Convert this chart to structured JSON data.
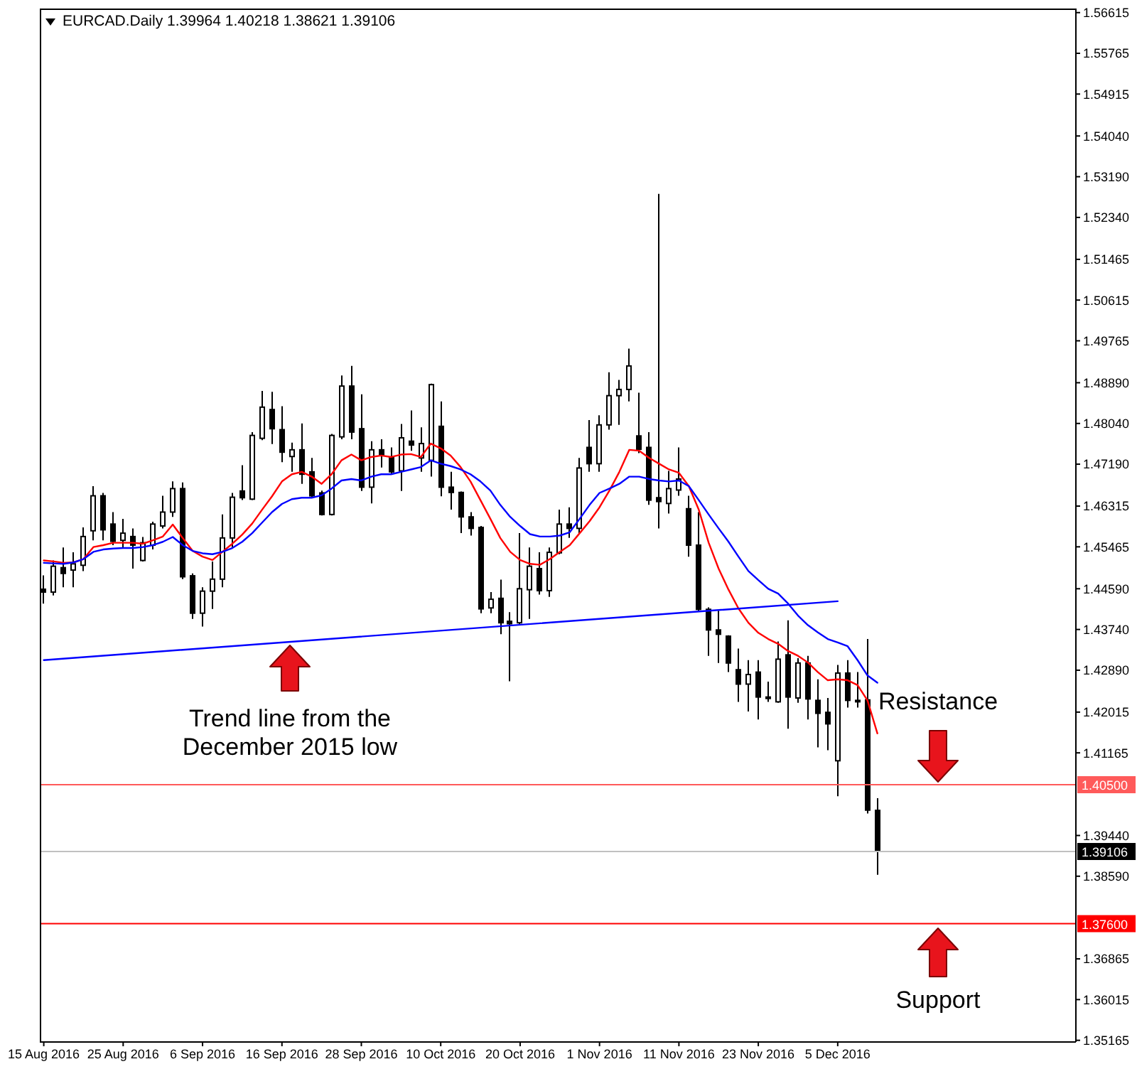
{
  "chart_data": {
    "type": "candlestick",
    "title": "EURCAD.Daily 1.39964 1.40218 1.38621 1.39106",
    "categories": [
      "15 Aug 2016",
      null,
      null,
      null,
      null,
      null,
      null,
      null,
      "25 Aug 2016",
      null,
      null,
      null,
      null,
      null,
      null,
      null,
      "6 Sep 2016",
      null,
      null,
      null,
      null,
      null,
      null,
      null,
      "16 Sep 2016",
      null,
      null,
      null,
      null,
      null,
      null,
      null,
      "28 Sep 2016",
      null,
      null,
      null,
      null,
      null,
      null,
      null,
      "10 Oct 2016",
      null,
      null,
      null,
      null,
      null,
      null,
      null,
      "20 Oct 2016",
      null,
      null,
      null,
      null,
      null,
      null,
      null,
      "1 Nov 2016",
      null,
      null,
      null,
      null,
      null,
      null,
      null,
      "11 Nov 2016",
      null,
      null,
      null,
      null,
      null,
      null,
      null,
      "23 Nov 2016",
      null,
      null,
      null,
      null,
      null,
      null,
      null,
      "5 Dec 2016",
      null,
      null,
      null,
      null
    ],
    "ohlc": [
      [
        1.4458,
        1.4487,
        1.4428,
        1.4452
      ],
      [
        1.4452,
        1.4518,
        1.4445,
        1.4506
      ],
      [
        1.4503,
        1.4545,
        1.4462,
        1.4491
      ],
      [
        1.4498,
        1.4535,
        1.4462,
        1.4511
      ],
      [
        1.4508,
        1.4587,
        1.4496,
        1.4568
      ],
      [
        1.458,
        1.4673,
        1.456,
        1.4653
      ],
      [
        1.4653,
        1.4659,
        1.456,
        1.4582
      ],
      [
        1.4594,
        1.4619,
        1.455,
        1.4558
      ],
      [
        1.456,
        1.4605,
        1.4545,
        1.4575
      ],
      [
        1.4568,
        1.4585,
        1.4501,
        1.455
      ],
      [
        1.4518,
        1.4567,
        1.4516,
        1.4555
      ],
      [
        1.455,
        1.4599,
        1.4541,
        1.4594
      ],
      [
        1.459,
        1.4653,
        1.4585,
        1.4619
      ],
      [
        1.4619,
        1.4683,
        1.4609,
        1.4668
      ],
      [
        1.4668,
        1.4681,
        1.4479,
        1.4484
      ],
      [
        1.4486,
        1.4491,
        1.4396,
        1.4408
      ],
      [
        1.4408,
        1.4462,
        1.438,
        1.4454
      ],
      [
        1.4454,
        1.4516,
        1.4417,
        1.4479
      ],
      [
        1.4479,
        1.4614,
        1.4462,
        1.4565
      ],
      [
        1.4565,
        1.4659,
        1.4545,
        1.465
      ],
      [
        1.4663,
        1.4717,
        1.4644,
        1.4649
      ],
      [
        1.4646,
        1.4786,
        1.4644,
        1.4779
      ],
      [
        1.4773,
        1.4872,
        1.4769,
        1.4838
      ],
      [
        1.4833,
        1.487,
        1.4761,
        1.4793
      ],
      [
        1.4791,
        1.484,
        1.4723,
        1.4744
      ],
      [
        1.4735,
        1.4764,
        1.4703,
        1.4749
      ],
      [
        1.4749,
        1.4804,
        1.4678,
        1.4698
      ],
      [
        1.4703,
        1.4732,
        1.4649,
        1.4653
      ],
      [
        1.4659,
        1.4664,
        1.4612,
        1.4614
      ],
      [
        1.4614,
        1.4782,
        1.4612,
        1.4779
      ],
      [
        1.4776,
        1.4904,
        1.4771,
        1.4882
      ],
      [
        1.4882,
        1.4924,
        1.4771,
        1.4786
      ],
      [
        1.4793,
        1.4865,
        1.4663,
        1.4671
      ],
      [
        1.4671,
        1.4767,
        1.4637,
        1.4749
      ],
      [
        1.4749,
        1.4771,
        1.4712,
        1.4737
      ],
      [
        1.4734,
        1.4754,
        1.4698,
        1.4703
      ],
      [
        1.4705,
        1.4803,
        1.4663,
        1.4774
      ],
      [
        1.4767,
        1.4831,
        1.4747,
        1.4759
      ],
      [
        1.4732,
        1.4796,
        1.4703,
        1.4762
      ],
      [
        1.4727,
        1.4887,
        1.4693,
        1.4885
      ],
      [
        1.4798,
        1.485,
        1.4652,
        1.4671
      ],
      [
        1.4671,
        1.4703,
        1.4624,
        1.466
      ],
      [
        1.466,
        1.4662,
        1.4575,
        1.4609
      ],
      [
        1.4609,
        1.4619,
        1.457,
        1.4585
      ],
      [
        1.4587,
        1.459,
        1.4408,
        1.4417
      ],
      [
        1.4419,
        1.4452,
        1.4408,
        1.4437
      ],
      [
        1.4439,
        1.4478,
        1.4364,
        1.4388
      ],
      [
        1.4391,
        1.441,
        1.4266,
        1.4386
      ],
      [
        1.4388,
        1.4575,
        1.4383,
        1.4459
      ],
      [
        1.4457,
        1.4545,
        1.4396,
        1.4506
      ],
      [
        1.4501,
        1.4535,
        1.4447,
        1.4455
      ],
      [
        1.4455,
        1.4545,
        1.4442,
        1.4535
      ],
      [
        1.4534,
        1.4624,
        1.4531,
        1.4594
      ],
      [
        1.4594,
        1.4629,
        1.4565,
        1.4585
      ],
      [
        1.4585,
        1.4732,
        1.4575,
        1.4711
      ],
      [
        1.4754,
        1.4811,
        1.4703,
        1.472
      ],
      [
        1.472,
        1.4821,
        1.4703,
        1.4801
      ],
      [
        1.4801,
        1.4911,
        1.4791,
        1.4862
      ],
      [
        1.4862,
        1.4895,
        1.4801,
        1.4875
      ],
      [
        1.4875,
        1.496,
        1.485,
        1.4924
      ],
      [
        1.4778,
        1.4868,
        1.4742,
        1.475
      ],
      [
        1.4754,
        1.4786,
        1.4634,
        1.4644
      ],
      [
        1.4649,
        1.5283,
        1.4585,
        1.4641
      ],
      [
        1.4637,
        1.4705,
        1.4616,
        1.4668
      ],
      [
        1.4665,
        1.4754,
        1.4653,
        1.4688
      ],
      [
        1.4626,
        1.4653,
        1.4526,
        1.455
      ],
      [
        1.455,
        1.4619,
        1.4413,
        1.4416
      ],
      [
        1.4416,
        1.442,
        1.4319,
        1.4373
      ],
      [
        1.4373,
        1.4413,
        1.4304,
        1.4364
      ],
      [
        1.436,
        1.4362,
        1.4285,
        1.4304
      ],
      [
        1.429,
        1.4334,
        1.4223,
        1.426
      ],
      [
        1.426,
        1.431,
        1.4203,
        1.428
      ],
      [
        1.4285,
        1.431,
        1.4186,
        1.4233
      ],
      [
        1.4233,
        1.4265,
        1.4223,
        1.423
      ],
      [
        1.4223,
        1.4349,
        1.4221,
        1.4312
      ],
      [
        1.4321,
        1.4393,
        1.4167,
        1.4233
      ],
      [
        1.4231,
        1.4314,
        1.4221,
        1.4304
      ],
      [
        1.4304,
        1.4319,
        1.4186,
        1.4229
      ],
      [
        1.4226,
        1.427,
        1.4128,
        1.4199
      ],
      [
        1.4201,
        1.4231,
        1.4122,
        1.4177
      ],
      [
        1.41,
        1.43,
        1.4026,
        1.4283
      ],
      [
        1.4283,
        1.431,
        1.4211,
        1.4226
      ],
      [
        1.4226,
        1.4285,
        1.4211,
        1.4224
      ],
      [
        1.4227,
        1.4354,
        1.399,
        1.3997
      ],
      [
        1.39964,
        1.40218,
        1.38621,
        1.39106
      ]
    ],
    "series": [
      {
        "type": "line",
        "color": "#ff0000",
        "values": [
          1.4518,
          1.4516,
          1.4513,
          1.4514,
          1.4521,
          1.4546,
          1.455,
          1.4555,
          1.4555,
          1.4555,
          1.4553,
          1.456,
          1.4568,
          1.4593,
          1.4565,
          1.4538,
          1.4526,
          1.4519,
          1.4536,
          1.4553,
          1.4572,
          1.4595,
          1.4624,
          1.4652,
          1.4683,
          1.4698,
          1.4703,
          1.4693,
          1.4678,
          1.4698,
          1.4727,
          1.4739,
          1.4727,
          1.4734,
          1.4737,
          1.4734,
          1.4739,
          1.474,
          1.4734,
          1.4762,
          1.4752,
          1.4737,
          1.4713,
          1.4683,
          1.4644,
          1.4605,
          1.4565,
          1.4536,
          1.4519,
          1.4511,
          1.4509,
          1.4521,
          1.4536,
          1.455,
          1.4575,
          1.46,
          1.4629,
          1.4664,
          1.4703,
          1.4749,
          1.4747,
          1.4732,
          1.472,
          1.4708,
          1.4701,
          1.4673,
          1.4624,
          1.4555,
          1.4501,
          1.4457,
          1.4418,
          1.4388,
          1.4367,
          1.4354,
          1.4344,
          1.4329,
          1.4319,
          1.4305,
          1.4285,
          1.4268,
          1.427,
          1.4268,
          1.4258,
          1.4226,
          1.4157
        ]
      },
      {
        "type": "line",
        "color": "#0000ff",
        "values": [
          1.4513,
          1.4512,
          1.4511,
          1.4514,
          1.4521,
          1.4536,
          1.4541,
          1.4543,
          1.4544,
          1.4544,
          1.4546,
          1.455,
          1.4557,
          1.4567,
          1.455,
          1.4538,
          1.4533,
          1.4531,
          1.4536,
          1.4544,
          1.4557,
          1.4575,
          1.4597,
          1.4619,
          1.4636,
          1.4646,
          1.4649,
          1.4649,
          1.4654,
          1.4668,
          1.4685,
          1.4688,
          1.4685,
          1.4693,
          1.4698,
          1.4698,
          1.4703,
          1.4708,
          1.4713,
          1.4727,
          1.472,
          1.4715,
          1.4708,
          1.4698,
          1.4683,
          1.4664,
          1.4634,
          1.4609,
          1.459,
          1.4573,
          1.4568,
          1.4568,
          1.457,
          1.4577,
          1.4605,
          1.4634,
          1.4659,
          1.4668,
          1.4678,
          1.4693,
          1.4693,
          1.4688,
          1.4685,
          1.4683,
          1.4685,
          1.4673,
          1.4644,
          1.4614,
          1.4585,
          1.4557,
          1.4526,
          1.4496,
          1.4477,
          1.4459,
          1.4449,
          1.4428,
          1.4403,
          1.4383,
          1.4368,
          1.4354,
          1.4347,
          1.4339,
          1.431,
          1.4278,
          1.4263
        ]
      },
      {
        "type": "line",
        "color": "#0000ff",
        "x": [
          "15 Aug 2016",
          "5 Dec 2016"
        ],
        "values": [
          1.431,
          1.4433
        ]
      }
    ],
    "ylim": [
      1.3513,
      1.567
    ],
    "yticks": [
      1.56615,
      1.55765,
      1.54915,
      {
        "value": 1.5404,
        "label": "1.54040"
      },
      {
        "value": 1.5319,
        "label": "1.53190"
      },
      {
        "value": 1.5234,
        "label": "1.52340"
      },
      1.51465,
      1.50615,
      1.49765,
      {
        "value": 1.4889,
        "label": "1.48890"
      },
      {
        "value": 1.4804,
        "label": "1.48040"
      },
      {
        "value": 1.4719,
        "label": "1.47190"
      },
      1.46315,
      1.45465,
      {
        "value": 1.4459,
        "label": "1.44590"
      },
      {
        "value": 1.4374,
        "label": "1.43740"
      },
      {
        "value": 1.4289,
        "label": "1.42890"
      },
      1.42015,
      1.41165,
      {
        "value": 1.3944,
        "label": "1.39440"
      },
      {
        "value": 1.3859,
        "label": "1.38590"
      },
      1.36865,
      1.36015,
      1.35165
    ],
    "ref_lines": [
      {
        "axis": "y",
        "value": 1.405,
        "label": "1.40500",
        "color": "#ff5a5a"
      },
      {
        "axis": "y",
        "value": 1.39106,
        "label": "1.39106",
        "color": "#c0c0c0"
      },
      {
        "axis": "y",
        "value": 1.376,
        "label": "1.37600",
        "color": "#ff0000"
      }
    ],
    "annotations": [
      "Trend line from the December 2015 low",
      "Resistance",
      "Support"
    ]
  }
}
